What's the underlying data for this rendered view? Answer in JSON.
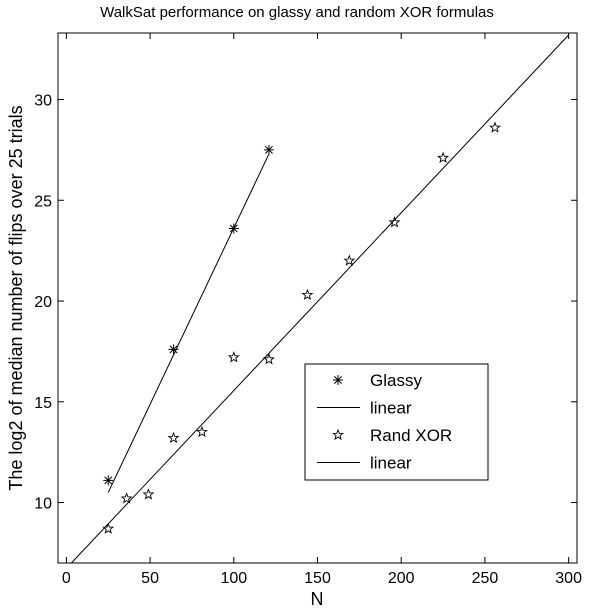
{
  "chart_data": {
    "type": "scatter",
    "title": "WalkSat performance on glassy and random XOR formulas",
    "xlabel": "N",
    "ylabel": "The log2 of median number of flips over 25 trials",
    "xlim": [
      -5,
      305
    ],
    "ylim": [
      7,
      33.3
    ],
    "x_ticks": [
      0,
      50,
      100,
      150,
      200,
      250,
      300
    ],
    "y_ticks": [
      10,
      15,
      20,
      25,
      30
    ],
    "grid": false,
    "legend_position": "center-right",
    "series": [
      {
        "name": "Glassy",
        "marker": "asterisk",
        "x": [
          25,
          64,
          100,
          121
        ],
        "y": [
          11.1,
          17.6,
          23.6,
          27.5
        ]
      },
      {
        "name": "linear",
        "kind": "line",
        "x": [
          25,
          121
        ],
        "y": [
          10.5,
          27.3
        ]
      },
      {
        "name": "Rand XOR",
        "marker": "star",
        "x": [
          25,
          36,
          49,
          64,
          81,
          100,
          121,
          144,
          169,
          196,
          225,
          256
        ],
        "y": [
          8.7,
          10.2,
          10.4,
          13.2,
          13.5,
          17.2,
          17.1,
          20.3,
          22.0,
          23.9,
          27.1,
          28.6
        ]
      },
      {
        "name": "linear",
        "kind": "line",
        "x": [
          3,
          300
        ],
        "y": [
          7.0,
          33.2
        ]
      }
    ]
  }
}
